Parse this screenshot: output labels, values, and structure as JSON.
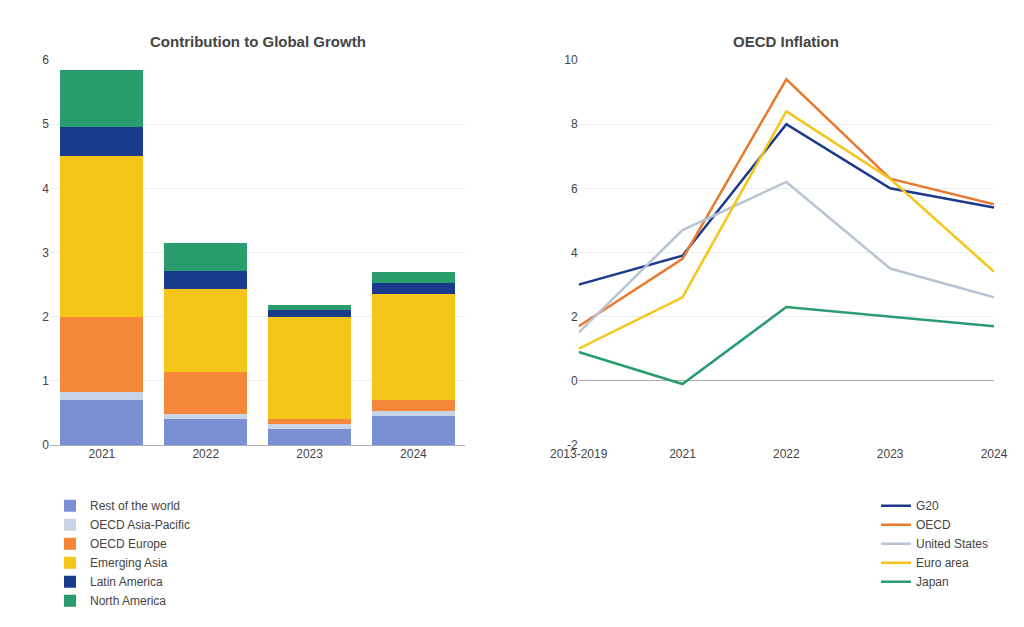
{
  "chart_data": [
    {
      "type": "bar",
      "title": "Contribution to Global Growth",
      "categories": [
        "2021",
        "2022",
        "2023",
        "2024"
      ],
      "series": [
        {
          "name": "Rest of the world",
          "color": "#7B8FD4",
          "values": [
            0.7,
            0.4,
            0.25,
            0.45
          ]
        },
        {
          "name": "OECD Asia-Pacific",
          "color": "#C8D4E8",
          "values": [
            0.13,
            0.08,
            0.08,
            0.08
          ]
        },
        {
          "name": "OECD Europe",
          "color": "#F4873A",
          "values": [
            1.17,
            0.65,
            0.07,
            0.17
          ]
        },
        {
          "name": "Emerging Asia",
          "color": "#F5C518",
          "values": [
            2.5,
            1.3,
            1.6,
            1.65
          ]
        },
        {
          "name": "Latin America",
          "color": "#1A3A8C",
          "values": [
            0.45,
            0.28,
            0.1,
            0.18
          ]
        },
        {
          "name": "North America",
          "color": "#2A9D6E",
          "values": [
            0.9,
            0.44,
            0.08,
            0.17
          ]
        }
      ],
      "stacked": true,
      "ylim": [
        0,
        6
      ],
      "yticks": [
        0,
        1,
        2,
        3,
        4,
        5,
        6
      ],
      "grid": true,
      "legend": "lower left"
    },
    {
      "type": "line",
      "title": "OECD Inflation",
      "categories": [
        "2013-2019",
        "2021",
        "2022",
        "2023",
        "2024"
      ],
      "series": [
        {
          "name": "G20",
          "color": "#1A3A8C",
          "values": [
            3.0,
            3.9,
            8.0,
            6.0,
            5.4
          ]
        },
        {
          "name": "OECD",
          "color": "#E87A30",
          "values": [
            1.7,
            3.8,
            9.4,
            6.3,
            5.5
          ]
        },
        {
          "name": "United States",
          "color": "#B8C4D4",
          "values": [
            1.5,
            4.7,
            6.2,
            3.5,
            2.6
          ]
        },
        {
          "name": "Euro area",
          "color": "#F5C518",
          "values": [
            1.0,
            2.6,
            8.4,
            6.3,
            3.4
          ]
        },
        {
          "name": "Japan",
          "color": "#2A9D6E",
          "values": [
            0.9,
            -0.1,
            2.3,
            2.0,
            1.7
          ]
        }
      ],
      "ylim": [
        -2,
        10
      ],
      "yticks": [
        -2,
        0,
        2,
        4,
        6,
        8,
        10
      ],
      "grid": true,
      "legend": "lower right"
    }
  ]
}
